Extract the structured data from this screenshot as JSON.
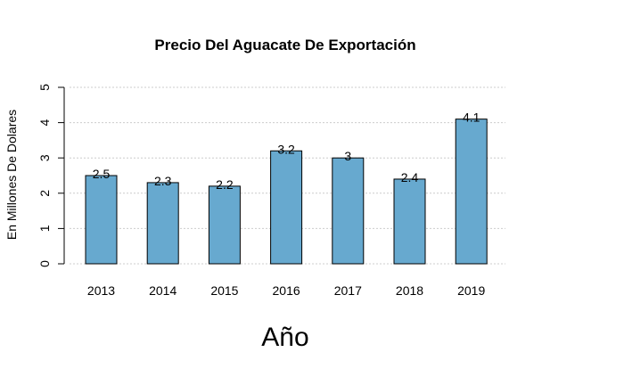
{
  "chart_data": {
    "type": "bar",
    "title": "Precio Del Aguacate De Exportación",
    "xlabel": "Año",
    "ylabel": "En Millones De Dolares",
    "categories": [
      "2013",
      "2014",
      "2015",
      "2016",
      "2017",
      "2018",
      "2019"
    ],
    "values": [
      2.5,
      2.3,
      2.2,
      3.2,
      3,
      2.4,
      4.1
    ],
    "value_labels": [
      "2.5",
      "2.3",
      "2.2",
      "3.2",
      "3",
      "2.4",
      "4.1"
    ],
    "ylim": [
      0,
      5
    ],
    "yticks": [
      "0",
      "1",
      "2",
      "3",
      "4",
      "5"
    ],
    "grid": true,
    "bar_color": "#67a9cf",
    "bar_border_color": "#000000",
    "grid_color": "#cccccc"
  }
}
